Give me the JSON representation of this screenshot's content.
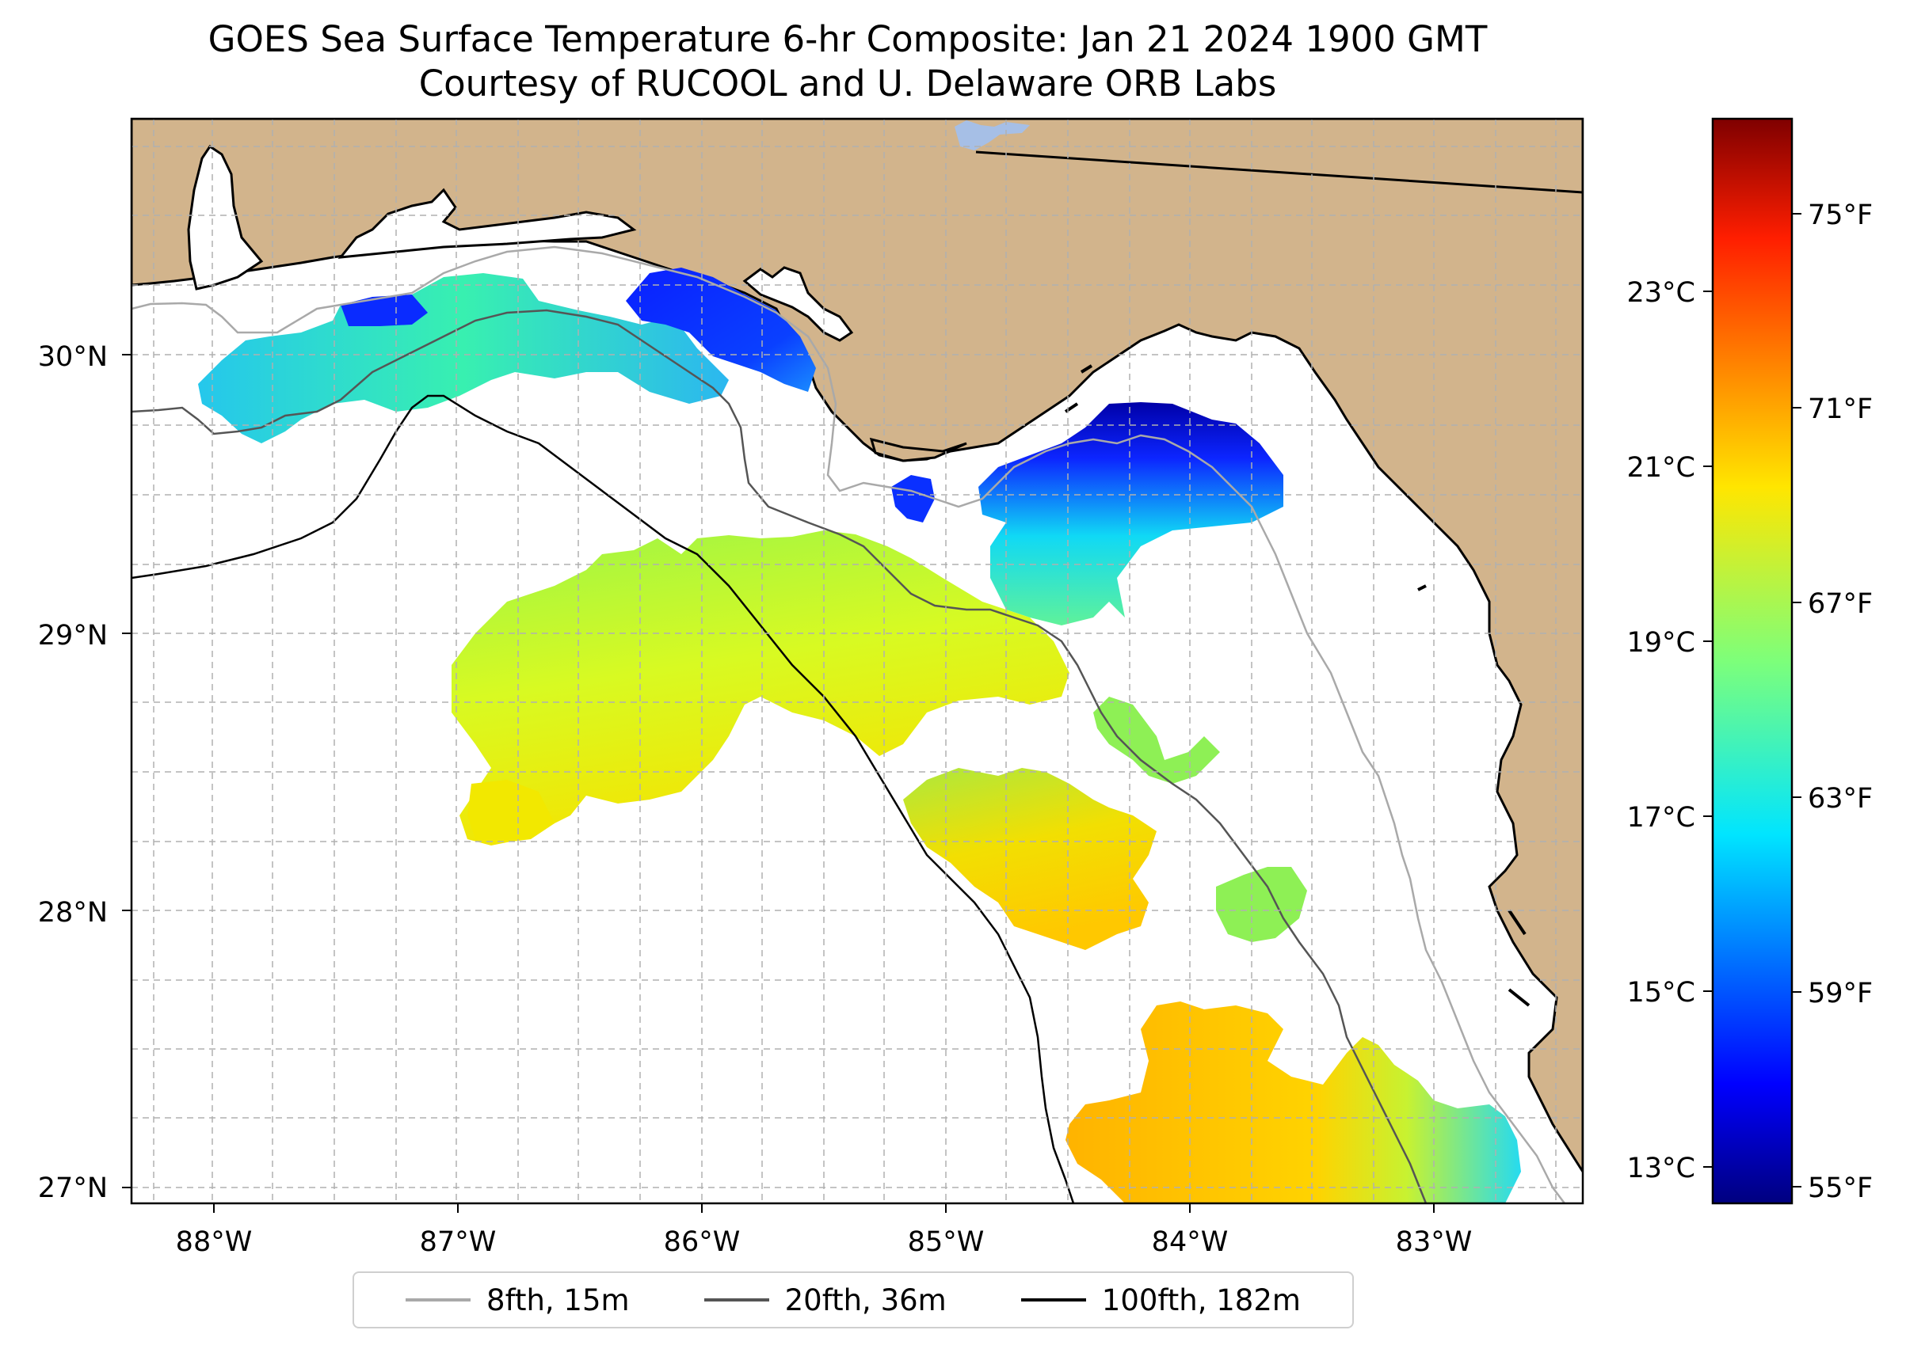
{
  "map": {
    "title_line1": "GOES Sea Surface Temperature 6-hr Composite: Jan 21 2024 1900 GMT",
    "title_line2": "Courtesy of RUCOOL and U. Delaware ORB Labs",
    "lat_labels": [
      "30°N",
      "29°N",
      "28°N",
      "27°N"
    ],
    "lon_labels": [
      "88°W",
      "87°W",
      "86°W",
      "85°W",
      "84°W",
      "83°W"
    ],
    "colors": {
      "land": "#d2b48c",
      "ocean": "#ffffff",
      "lake": "#a6bfe6",
      "grid": "#b0b0b0"
    }
  },
  "colorbar": {
    "colormap": "jet",
    "celsius_ticks": [
      "23°C",
      "21°C",
      "19°C",
      "17°C",
      "15°C",
      "13°C"
    ],
    "fahrenheit_ticks": [
      "75°F",
      "71°F",
      "67°F",
      "63°F",
      "59°F",
      "55°F"
    ]
  },
  "legend": {
    "items": [
      {
        "label": "8fth, 15m",
        "color": "#a9a9a9"
      },
      {
        "label": "20fth, 36m",
        "color": "#555555"
      },
      {
        "label": "100fth, 182m",
        "color": "#000000"
      }
    ]
  }
}
